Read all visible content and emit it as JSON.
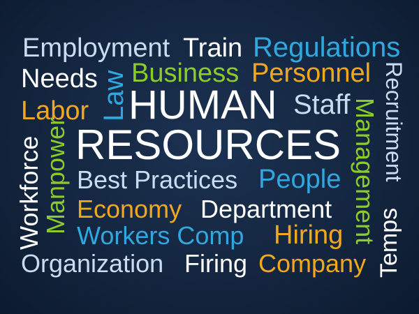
{
  "colors": {
    "background": "#142640",
    "light_blue": "#c8def0",
    "white": "#ffffff",
    "cyan": "#2fa8e0",
    "green": "#8ccc2a",
    "orange": "#f2a81e"
  },
  "words": {
    "employment": "Employment",
    "train": "Train",
    "regulations": "Regulations",
    "needs": "Needs",
    "law": "Law",
    "business": "Business",
    "personnel": "Personnel",
    "recruitment": "Recruitment",
    "labor": "Labor",
    "human": "HUMAN",
    "staff": "Staff",
    "management": "Management",
    "workforce": "Workforce",
    "manpower": "Manpower",
    "resources": "RESOURCES",
    "best_practices": "Best Practices",
    "people": "People",
    "economy": "Economy",
    "department": "Department",
    "temps": "Temps",
    "workers_comp": "Workers Comp",
    "hiring": "Hiring",
    "organization": "Organization",
    "firing": "Firing",
    "company": "Company"
  }
}
